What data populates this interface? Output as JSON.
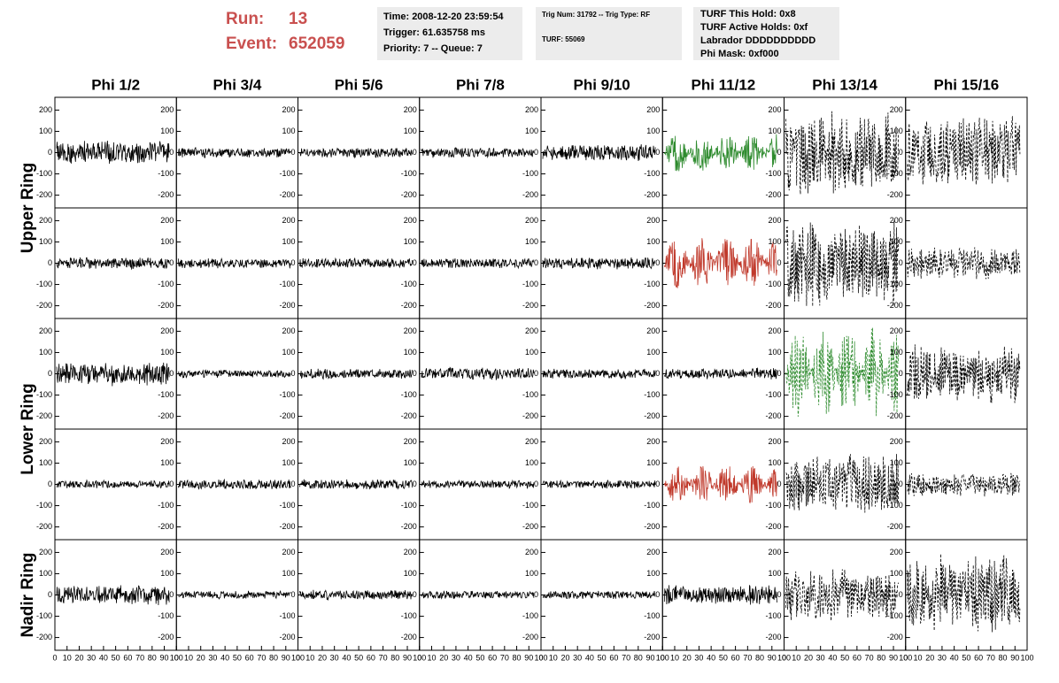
{
  "header": {
    "run_label": "Run:",
    "run": 13,
    "event_label": "Event:",
    "event": 652059,
    "box1": [
      "Time: 2008-12-20 23:59:54",
      "Trigger: 61.635758 ms",
      "Priority: 7 -- Queue: 7"
    ],
    "box2": [
      "Trig Num: 31792 -- Trig Type: RF",
      "TURF: 55069"
    ],
    "box3": [
      "TURF This Hold: 0x8",
      "TURF Active Holds: 0xf",
      "Labrador DDDDDDDDDD",
      "Phi Mask: 0xf000"
    ]
  },
  "columns": [
    "Phi 1/2",
    "Phi 3/4",
    "Phi 5/6",
    "Phi 7/8",
    "Phi 9/10",
    "Phi 11/12",
    "Phi 13/14",
    "Phi 15/16"
  ],
  "ring_labels": [
    {
      "label": "Upper Ring",
      "rows": [
        0,
        1
      ]
    },
    {
      "label": "Lower Ring",
      "rows": [
        2,
        3
      ]
    },
    {
      "label": "Nadir Ring",
      "rows": [
        4
      ]
    }
  ],
  "axis": {
    "ylim": [
      -260,
      260
    ],
    "yticks": [
      -200,
      -100,
      0,
      100,
      200
    ],
    "xlim": [
      0,
      100
    ],
    "xticks": [
      0,
      10,
      20,
      30,
      40,
      50,
      60,
      70,
      80,
      90,
      100
    ]
  },
  "panels": [
    [
      {
        "amplitude": 60,
        "color": "#000000",
        "dashed": false
      },
      {
        "amplitude": 25,
        "color": "#000000",
        "dashed": false
      },
      {
        "amplitude": 25,
        "color": "#000000",
        "dashed": false
      },
      {
        "amplitude": 25,
        "color": "#000000",
        "dashed": false
      },
      {
        "amplitude": 40,
        "color": "#000000",
        "dashed": false
      },
      {
        "amplitude": 90,
        "color": "#2e8b2e",
        "dashed": false
      },
      {
        "amplitude": 200,
        "color": "#000000",
        "dashed": true
      },
      {
        "amplitude": 180,
        "color": "#000000",
        "dashed": true
      }
    ],
    [
      {
        "amplitude": 30,
        "color": "#000000",
        "dashed": false
      },
      {
        "amplitude": 25,
        "color": "#000000",
        "dashed": false
      },
      {
        "amplitude": 25,
        "color": "#000000",
        "dashed": false
      },
      {
        "amplitude": 25,
        "color": "#000000",
        "dashed": false
      },
      {
        "amplitude": 30,
        "color": "#000000",
        "dashed": false
      },
      {
        "amplitude": 120,
        "color": "#c0392b",
        "dashed": false
      },
      {
        "amplitude": 220,
        "color": "#000000",
        "dashed": true
      },
      {
        "amplitude": 80,
        "color": "#000000",
        "dashed": true
      }
    ],
    [
      {
        "amplitude": 60,
        "color": "#000000",
        "dashed": false
      },
      {
        "amplitude": 20,
        "color": "#000000",
        "dashed": false
      },
      {
        "amplitude": 25,
        "color": "#000000",
        "dashed": false
      },
      {
        "amplitude": 30,
        "color": "#000000",
        "dashed": false
      },
      {
        "amplitude": 25,
        "color": "#000000",
        "dashed": false
      },
      {
        "amplitude": 30,
        "color": "#000000",
        "dashed": false
      },
      {
        "amplitude": 220,
        "color": "#2e8b2e",
        "dashed": true
      },
      {
        "amplitude": 140,
        "color": "#000000",
        "dashed": true
      }
    ],
    [
      {
        "amplitude": 20,
        "color": "#000000",
        "dashed": false
      },
      {
        "amplitude": 25,
        "color": "#000000",
        "dashed": false
      },
      {
        "amplitude": 25,
        "color": "#000000",
        "dashed": false
      },
      {
        "amplitude": 20,
        "color": "#000000",
        "dashed": false
      },
      {
        "amplitude": 20,
        "color": "#000000",
        "dashed": false
      },
      {
        "amplitude": 90,
        "color": "#c0392b",
        "dashed": false
      },
      {
        "amplitude": 150,
        "color": "#000000",
        "dashed": true
      },
      {
        "amplitude": 60,
        "color": "#000000",
        "dashed": true
      }
    ],
    [
      {
        "amplitude": 50,
        "color": "#000000",
        "dashed": false
      },
      {
        "amplitude": 20,
        "color": "#000000",
        "dashed": false
      },
      {
        "amplitude": 25,
        "color": "#000000",
        "dashed": false
      },
      {
        "amplitude": 20,
        "color": "#000000",
        "dashed": false
      },
      {
        "amplitude": 20,
        "color": "#000000",
        "dashed": false
      },
      {
        "amplitude": 50,
        "color": "#000000",
        "dashed": false
      },
      {
        "amplitude": 130,
        "color": "#000000",
        "dashed": true
      },
      {
        "amplitude": 200,
        "color": "#000000",
        "dashed": true
      }
    ]
  ]
}
